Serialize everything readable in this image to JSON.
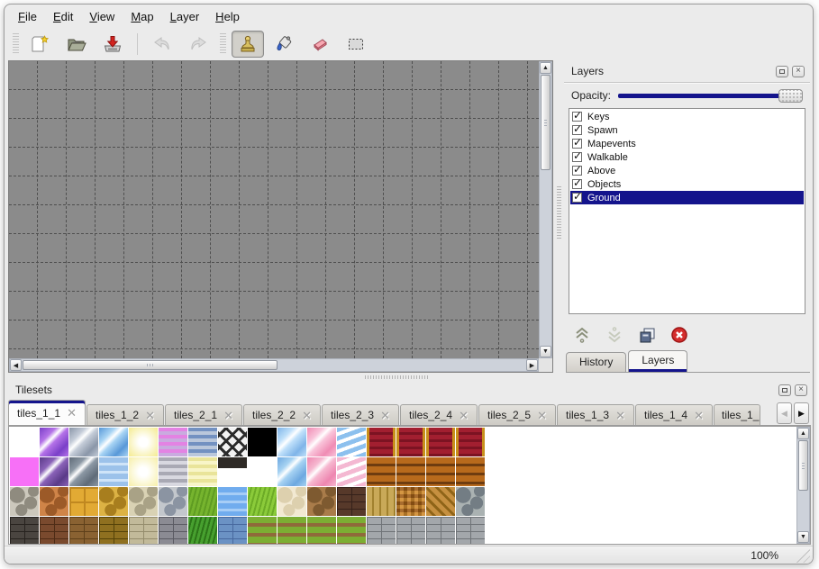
{
  "menu": {
    "items": [
      {
        "initial": "F",
        "rest": "ile"
      },
      {
        "initial": "E",
        "rest": "dit"
      },
      {
        "initial": "V",
        "rest": "iew"
      },
      {
        "initial": "M",
        "rest": "ap"
      },
      {
        "initial": "L",
        "rest": "ayer"
      },
      {
        "initial": "H",
        "rest": "elp"
      }
    ]
  },
  "toolbar": {
    "icons": [
      "new-file",
      "open-file",
      "save-file",
      "undo",
      "redo",
      "stamp-tool",
      "fill-tool",
      "eraser-tool",
      "select-tool"
    ],
    "active_tool": "stamp-tool"
  },
  "layers_panel": {
    "title": "Layers",
    "opacity_label": "Opacity:",
    "opacity_percent": 100,
    "layers": [
      {
        "name": "Keys",
        "checked": true,
        "selected": false
      },
      {
        "name": "Spawn",
        "checked": true,
        "selected": false
      },
      {
        "name": "Mapevents",
        "checked": true,
        "selected": false
      },
      {
        "name": "Walkable",
        "checked": true,
        "selected": false
      },
      {
        "name": "Above",
        "checked": true,
        "selected": false
      },
      {
        "name": "Objects",
        "checked": true,
        "selected": false
      },
      {
        "name": "Ground",
        "checked": true,
        "selected": true
      }
    ],
    "buttons": [
      "move-layer-up",
      "move-layer-down",
      "duplicate-layer",
      "delete-layer"
    ],
    "tabs": [
      {
        "label": "History",
        "active": false
      },
      {
        "label": "Layers",
        "active": true
      }
    ]
  },
  "tilesets_panel": {
    "title": "Tilesets",
    "tabs": [
      {
        "label": "tiles_1_1",
        "active": true
      },
      {
        "label": "tiles_1_2",
        "active": false
      },
      {
        "label": "tiles_2_1",
        "active": false
      },
      {
        "label": "tiles_2_2",
        "active": false
      },
      {
        "label": "tiles_2_3",
        "active": false
      },
      {
        "label": "tiles_2_4",
        "active": false
      },
      {
        "label": "tiles_2_5",
        "active": false
      },
      {
        "label": "tiles_1_3",
        "active": false
      },
      {
        "label": "tiles_1_4",
        "active": false
      },
      {
        "label": "tiles_1_",
        "active": false,
        "truncated": true
      }
    ],
    "tile_grid": {
      "tile_size": 32,
      "rows": [
        [
          {
            "p": "empty"
          },
          {
            "p": "glass",
            "c1": "#b472e8",
            "c2": "#7a3fc8"
          },
          {
            "p": "glass",
            "c1": "#c4ccd8",
            "c2": "#8a96a8"
          },
          {
            "p": "glass",
            "c1": "#a8d4f4",
            "c2": "#5898d8"
          },
          {
            "p": "glow",
            "c1": "#f5ec96"
          },
          {
            "p": "hstripes",
            "c1": "#e383e3",
            "c2": "#c9abdf"
          },
          {
            "p": "hstripes",
            "c1": "#7391c1",
            "c2": "#bac7db"
          },
          {
            "p": "lattice",
            "c1": "#2a2a2a"
          },
          {
            "p": "solid",
            "c1": "#000000"
          },
          {
            "p": "glass",
            "c1": "#bfe0fa",
            "c2": "#7fb4e8"
          },
          {
            "p": "glass",
            "c1": "#f9c4da",
            "c2": "#f08cb4"
          },
          {
            "p": "waves",
            "c1": "#8cc0ee"
          },
          {
            "p": "curtain",
            "c1": "#a21f30",
            "c2": "#7c1322",
            "edge": "#c8901c"
          },
          {
            "p": "curtain",
            "c1": "#a21f30",
            "c2": "#7c1322",
            "edge": "#c8901c"
          },
          {
            "p": "curtain",
            "c1": "#a21f30",
            "c2": "#7c1322",
            "edge": "#c8901c"
          },
          {
            "p": "curtain",
            "c1": "#a21f30",
            "c2": "#7c1322",
            "edge": "#c8901c"
          }
        ],
        [
          {
            "p": "solid",
            "c1": "#f770f7"
          },
          {
            "p": "glass",
            "c1": "#8a62b8",
            "c2": "#5a3a88"
          },
          {
            "p": "glass",
            "c1": "#8c98a4",
            "c2": "#5f6b78"
          },
          {
            "p": "water",
            "c1": "#9cc2ea",
            "c2": "#cfe4f8"
          },
          {
            "p": "glow",
            "c1": "#f7f0ad"
          },
          {
            "p": "hstripes",
            "c1": "#a9a9b4",
            "c2": "#d8d8e0"
          },
          {
            "p": "hstripes",
            "c1": "#e9e49a",
            "c2": "#f8f5c8"
          },
          {
            "p": "plaque",
            "c1": "#2e2a26"
          },
          {
            "p": "empty"
          },
          {
            "p": "glass",
            "c1": "#a6d2f2",
            "c2": "#6da8e0"
          },
          {
            "p": "glass",
            "c1": "#f6b8d0",
            "c2": "#ee86b0"
          },
          {
            "p": "waves",
            "c1": "#f4b8d2"
          },
          {
            "p": "planks",
            "c1": "#b86a1c",
            "c2": "#6e3c10"
          },
          {
            "p": "planks",
            "c1": "#b86a1c",
            "c2": "#6e3c10"
          },
          {
            "p": "planks",
            "c1": "#b86a1c",
            "c2": "#6e3c10"
          },
          {
            "p": "planks",
            "c1": "#b86a1c",
            "c2": "#6e3c10"
          }
        ],
        [
          {
            "p": "stones",
            "c1": "#ccc8bc",
            "c2": "#8f8b7f"
          },
          {
            "p": "stones",
            "c1": "#cf8448",
            "c2": "#9c5a28"
          },
          {
            "p": "check",
            "c1": "#e2aa34",
            "c2": "#c08820"
          },
          {
            "p": "stones",
            "c1": "#dcb244",
            "c2": "#a87e1e"
          },
          {
            "p": "stones",
            "c1": "#d9d2b4",
            "c2": "#a9a286"
          },
          {
            "p": "stones",
            "c1": "#c3c7cc",
            "c2": "#8b94a2"
          },
          {
            "p": "grass",
            "c1": "#76b42e",
            "c2": "#5f9c22"
          },
          {
            "p": "water",
            "c1": "#70acee",
            "c2": "#a6cdf6"
          },
          {
            "p": "grass",
            "c1": "#8bcb3a",
            "c2": "#6cab26"
          },
          {
            "p": "stones",
            "c1": "#f2e9d2",
            "c2": "#ddd0ae"
          },
          {
            "p": "stones",
            "c1": "#a97c4a",
            "c2": "#7e5a30"
          },
          {
            "p": "bricks",
            "c1": "#57392a",
            "c2": "#35211a"
          },
          {
            "p": "vplanks",
            "c1": "#c9a958",
            "c2": "#a1812e"
          },
          {
            "p": "weave",
            "c1": "#cf8a2e",
            "c2": "#9e5c16"
          },
          {
            "p": "herringbone",
            "c1": "#c69040",
            "c2": "#8f6418"
          },
          {
            "p": "stones",
            "c1": "#aab2b2",
            "c2": "#737d84"
          }
        ],
        [
          {
            "p": "bricks",
            "c1": "#4a4540",
            "c2": "#27231f"
          },
          {
            "p": "bricks",
            "c1": "#7a4a2e",
            "c2": "#4e2c16"
          },
          {
            "p": "bricks",
            "c1": "#8a6232",
            "c2": "#5e401a"
          },
          {
            "p": "bricks",
            "c1": "#8f7020",
            "c2": "#544208"
          },
          {
            "p": "bricks",
            "c1": "#c2ba9a",
            "c2": "#948c6c"
          },
          {
            "p": "bricks",
            "c1": "#8b8b93",
            "c2": "#5b5b63"
          },
          {
            "p": "grass",
            "c1": "#47a02f",
            "c2": "#2c7418"
          },
          {
            "p": "bricks",
            "c1": "#6b92c4",
            "c2": "#47689e"
          },
          {
            "p": "rows",
            "c1": "#7cae33",
            "c2": "#8f6a3a"
          },
          {
            "p": "rows",
            "c1": "#7cae33",
            "c2": "#8f6a3a"
          },
          {
            "p": "rows",
            "c1": "#7cae33",
            "c2": "#8f6a3a"
          },
          {
            "p": "rows",
            "c1": "#7cae33",
            "c2": "#8f6a3a"
          },
          {
            "p": "bricks",
            "c1": "#a3a7ab",
            "c2": "#6f7377"
          },
          {
            "p": "bricks",
            "c1": "#a3a7ab",
            "c2": "#6f7377"
          },
          {
            "p": "bricks",
            "c1": "#a3a7ab",
            "c2": "#6f7377"
          },
          {
            "p": "bricks",
            "c1": "#a3a7ab",
            "c2": "#6f7377"
          }
        ]
      ]
    }
  },
  "status_bar": {
    "zoom": "100%"
  },
  "colors": {
    "accent_navy": "#14148c",
    "canvas_gray": "#8b8b8b",
    "grid_line": "#4f4f4f",
    "window_bg": "#ebebeb",
    "selection_bg": "#14148c",
    "delete_red": "#d42d2d"
  }
}
